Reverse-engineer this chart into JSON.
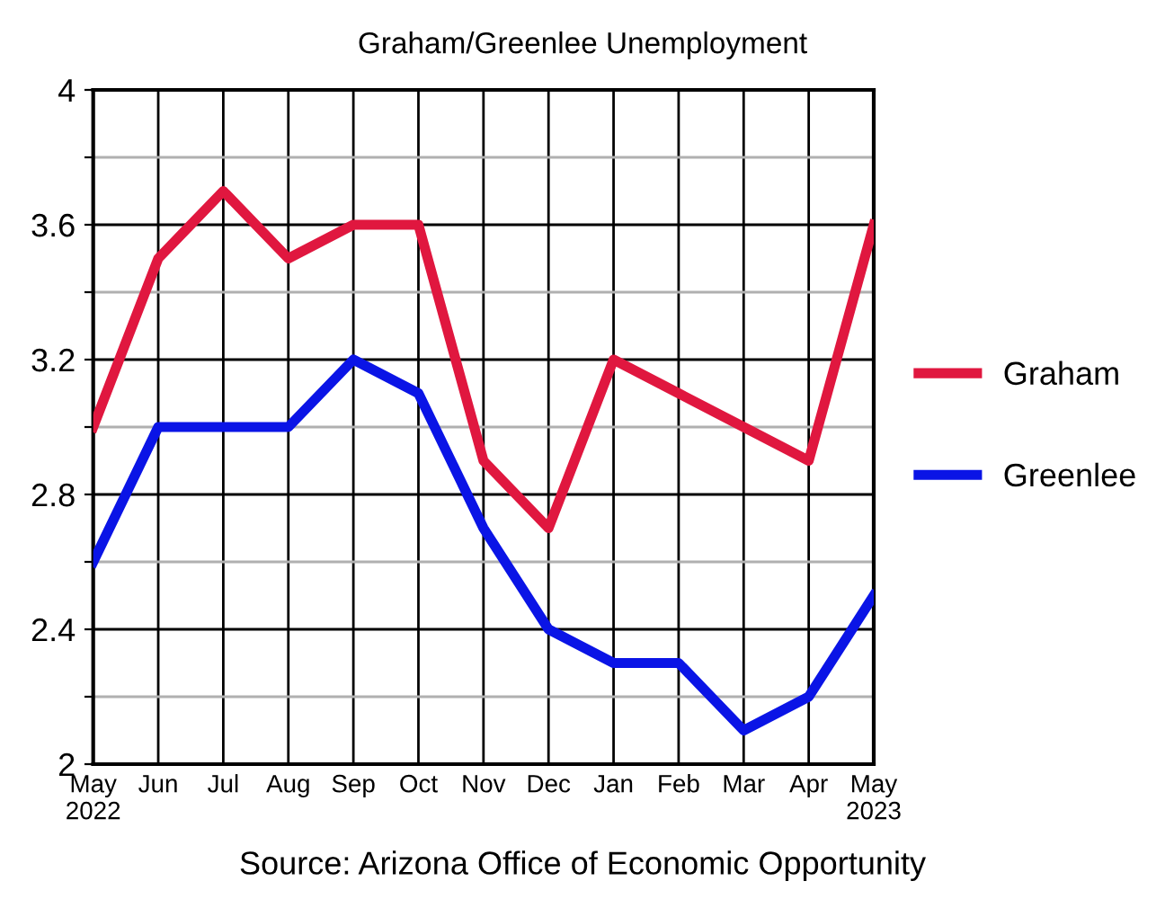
{
  "chart_data": {
    "type": "line",
    "title": "Graham/Greenlee Unemployment",
    "categories": [
      "May\n2022",
      "Jun",
      "Jul",
      "Aug",
      "Sep",
      "Oct",
      "Nov",
      "Dec",
      "Jan",
      "Feb",
      "Mar",
      "Apr",
      "May\n2023"
    ],
    "series": [
      {
        "name": "Graham",
        "color": "#e0173f",
        "values": [
          3.0,
          3.5,
          3.7,
          3.5,
          3.6,
          3.6,
          2.9,
          2.7,
          3.2,
          3.1,
          3.0,
          2.9,
          3.6
        ]
      },
      {
        "name": "Greenlee",
        "color": "#0a14e6",
        "values": [
          2.6,
          3.0,
          3.0,
          3.0,
          3.2,
          3.1,
          2.7,
          2.4,
          2.3,
          2.3,
          2.1,
          2.2,
          2.5
        ]
      }
    ],
    "ylim": [
      2,
      4
    ],
    "yticks": [
      2,
      {
        "value": 2.2,
        "label": null
      },
      2.4,
      {
        "value": 2.6,
        "label": null
      },
      2.8,
      {
        "value": 3.0,
        "label": null
      },
      3.2,
      {
        "value": 3.4,
        "label": null
      },
      3.6,
      {
        "value": 3.8,
        "label": null
      },
      4
    ],
    "grid": true,
    "legend": "right",
    "marker": "none",
    "line_style": "solid",
    "annotations": [
      "Source: Arizona Office of Economic Opportunity"
    ]
  }
}
